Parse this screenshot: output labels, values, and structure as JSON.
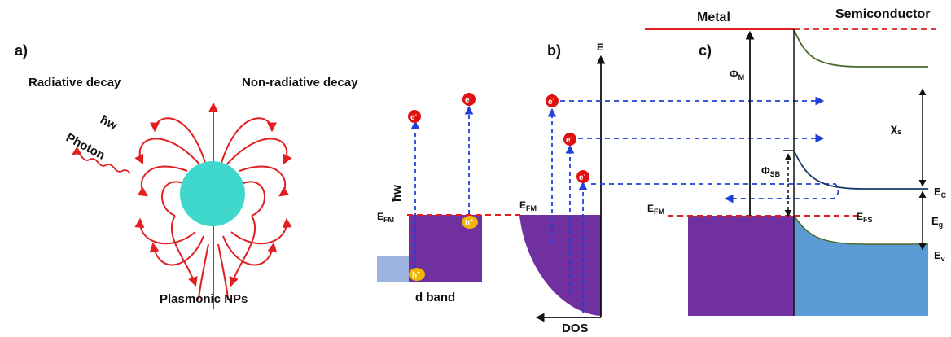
{
  "panel_a": {
    "label": "a)",
    "radiative": "Radiative decay",
    "nonradiative": "Non-radiative decay",
    "hbar_w": "ħw",
    "photon": "Photon",
    "caption": "Plasmonic NPs"
  },
  "panel_b": {
    "label": "b)",
    "hbar_w": "ħw",
    "electron": "e",
    "electron_sup": "-",
    "hole": "h",
    "hole_sup": "+",
    "efm_main": "E",
    "efm_sub": "FM",
    "d_band": "d band",
    "axis_e": "E",
    "dos": "DOS"
  },
  "panel_c": {
    "label": "c)",
    "metal": "Metal",
    "semiconductor": "Semiconductor",
    "phi": "Φ",
    "phi_m_sub": "M",
    "phi_sb_sub": "SB",
    "chi": "χ",
    "chi_sub": "s",
    "ec_main": "E",
    "ec_sub": "C",
    "eg_main": "E",
    "eg_sub": "g",
    "ev_main": "E",
    "ev_sub": "v",
    "efm_main": "E",
    "efm_sub": "FM",
    "efs_main": "E",
    "efs_sub": "FS"
  },
  "colors": {
    "field_lines": "#e02020",
    "nanoparticle": "#40d8cc",
    "metal_band": "#7030a0",
    "d_band_box": "#9db3e0",
    "semiconductor_band": "#5b9bd5",
    "hole": "#f0b400",
    "electron": "#e01010",
    "arrows": "#1f3fd8",
    "fermi_line": "#e02020",
    "band_curve": "#4a6a2a"
  }
}
